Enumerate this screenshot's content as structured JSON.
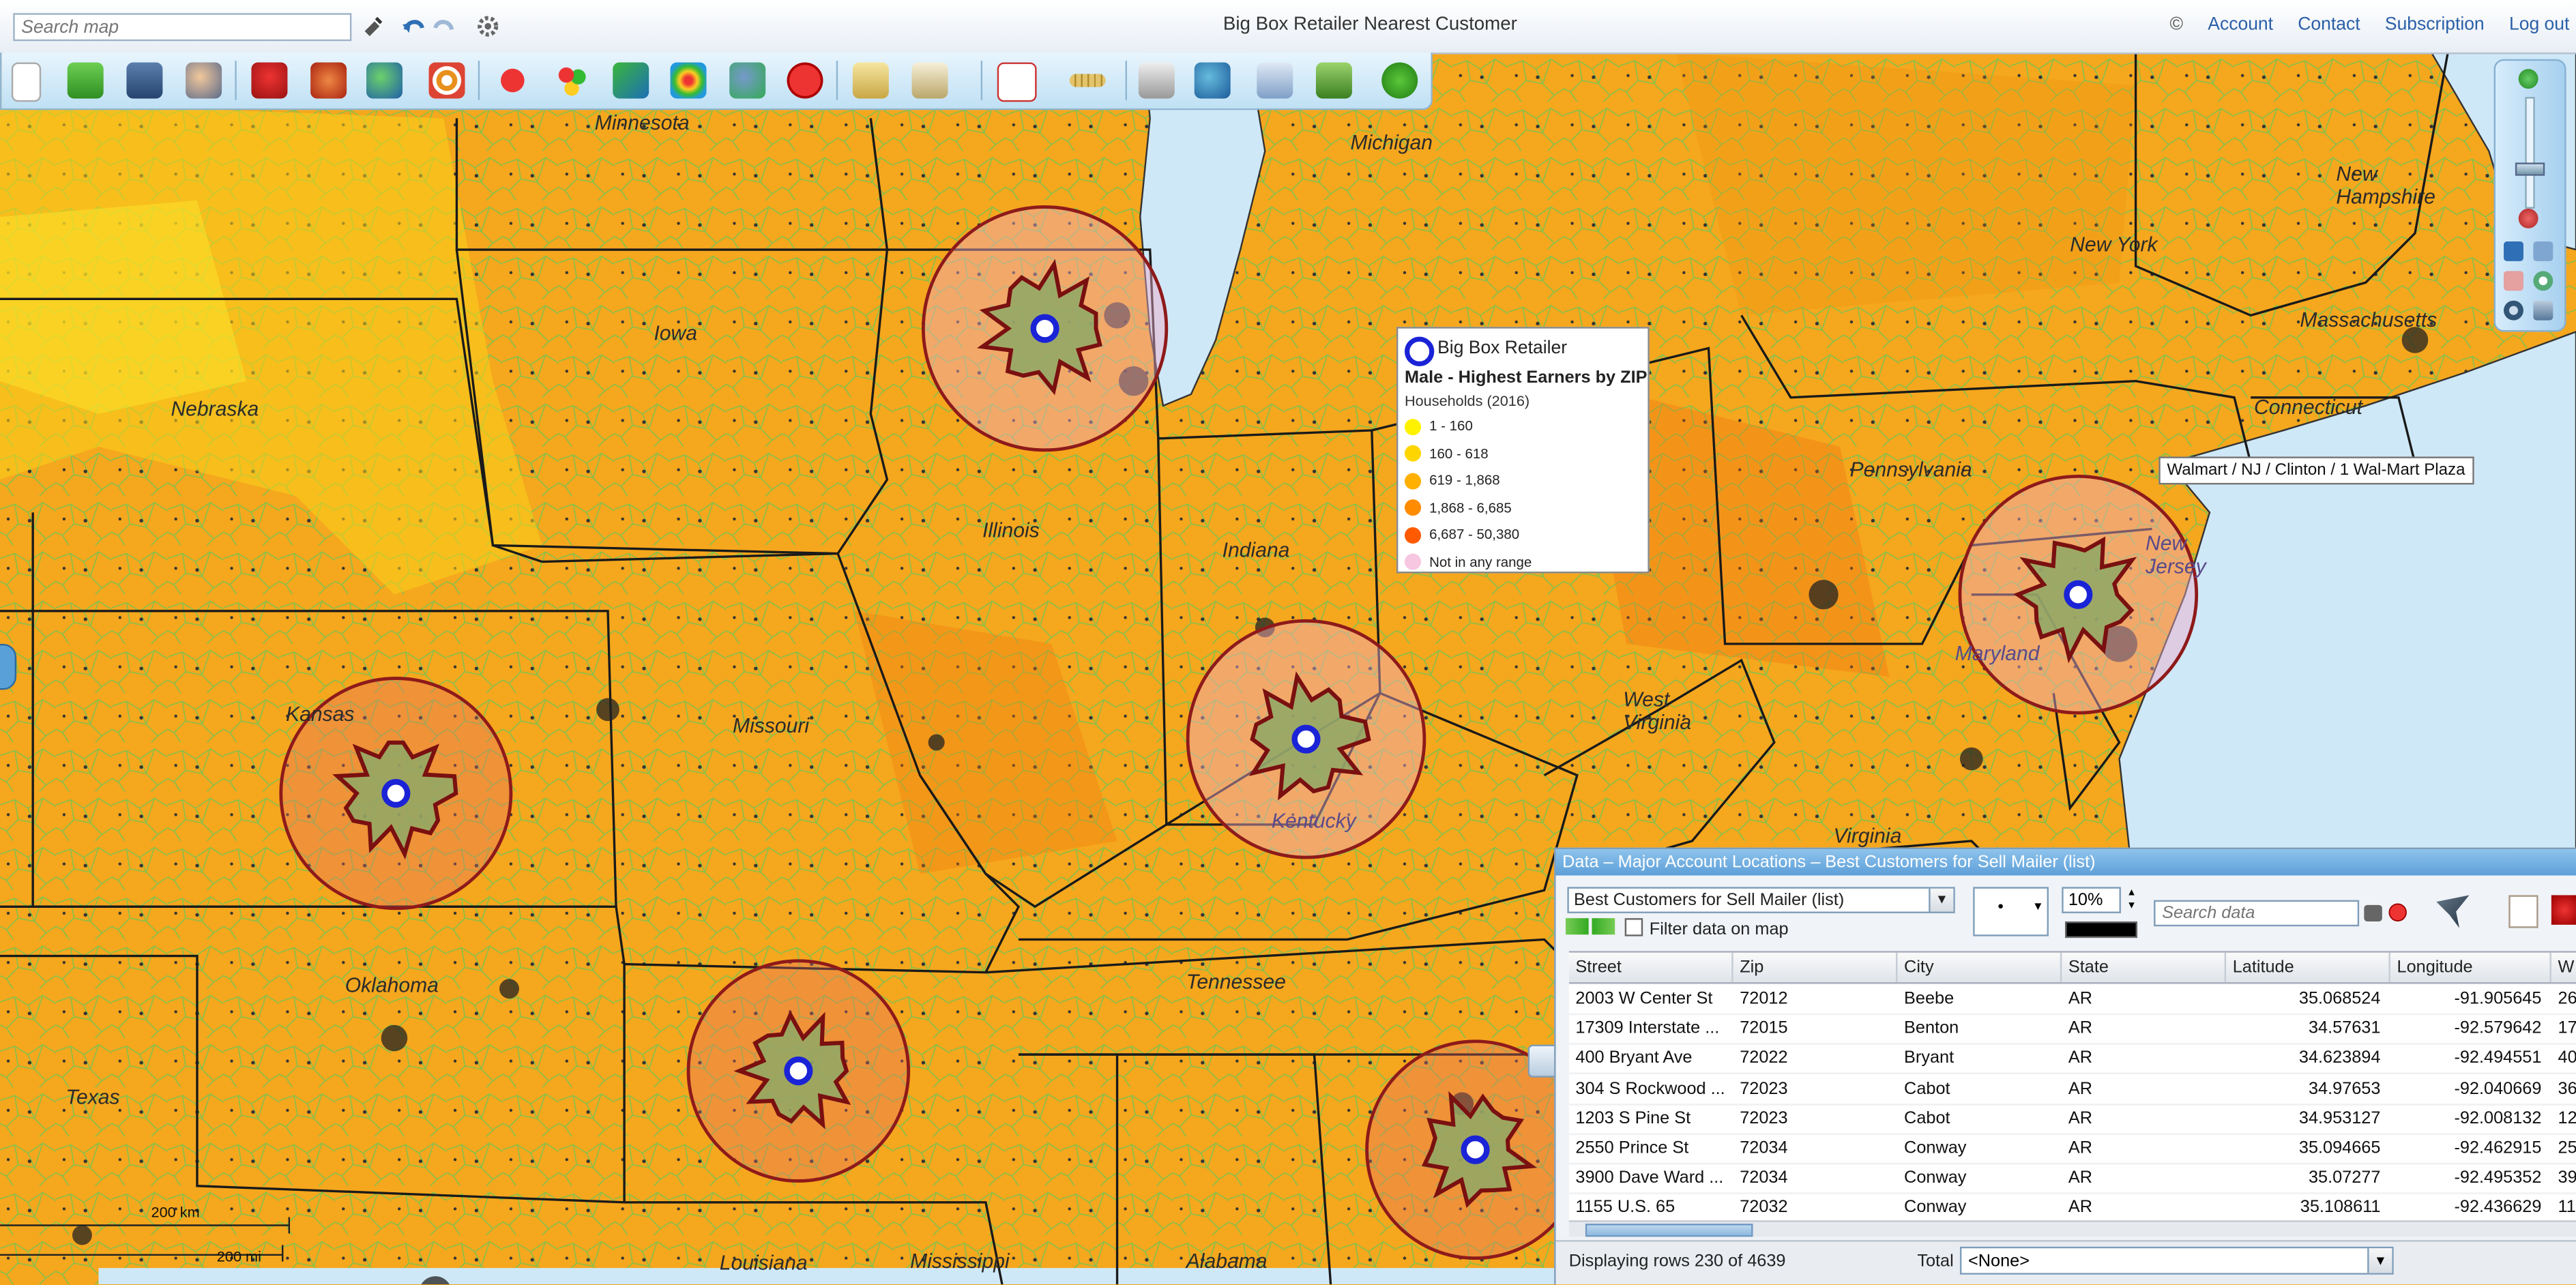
{
  "app": {
    "title": "Big Box Retailer Nearest Customer",
    "search_placeholder": "Search map",
    "copyright": "©",
    "links": [
      "Account",
      "Contact",
      "Subscription",
      "Log out"
    ]
  },
  "map": {
    "states": [
      {
        "name": "Minnesota"
      },
      {
        "name": "Michigan"
      },
      {
        "name": "Iowa"
      },
      {
        "name": "Nebraska"
      },
      {
        "name": "Illinois"
      },
      {
        "name": "Indiana"
      },
      {
        "name": "Kansas"
      },
      {
        "name": "Missouri"
      },
      {
        "name": "Kentucky"
      },
      {
        "name": "Oklahoma"
      },
      {
        "name": "Tennessee"
      },
      {
        "name": "Texas"
      },
      {
        "name": "Louisiana"
      },
      {
        "name": "Mississippi"
      },
      {
        "name": "Alabama"
      },
      {
        "name": "Pennsylvania"
      },
      {
        "name": "West Virginia"
      },
      {
        "name": "Virginia"
      },
      {
        "name": "Maryland"
      },
      {
        "name": "New York"
      },
      {
        "name": "New Hampshire"
      },
      {
        "name": "Massachusetts"
      },
      {
        "name": "Connecticut"
      },
      {
        "name": "New Jersey"
      }
    ],
    "scale_km": "200 km",
    "scale_mi": "200 mi",
    "tooltip": "Walmart /  NJ /  Clinton /  1 Wal-Mart Plaza"
  },
  "legend": {
    "symbol_title": "Big Box Retailer",
    "layer_title": "Male - Highest Earners by ZIP",
    "subtitle": "Households (2016)",
    "ranges": [
      {
        "label": "1 - 160",
        "color": "#fff200"
      },
      {
        "label": "160 - 618",
        "color": "#ffd500"
      },
      {
        "label": "619 - 1,868",
        "color": "#ffb000"
      },
      {
        "label": "1,868 - 6,685",
        "color": "#ff8c00"
      },
      {
        "label": "6,687 - 50,380",
        "color": "#ff5a00"
      },
      {
        "label": "Not in any range",
        "color": "#f7c6e0"
      }
    ]
  },
  "data_panel": {
    "title": "Data – Major Account Locations – Best Customers for Sell Mailer (list)",
    "dataset": "Best Customers for Sell Mailer (list)",
    "point_symbol": "•",
    "opacity": "10%",
    "search_placeholder": "Search data",
    "filter_label": "Filter data on map",
    "columns": [
      "Street",
      "Zip",
      "City",
      "State",
      "Latitude",
      "Longitude",
      "W"
    ],
    "rows": [
      [
        "2003 W Center St",
        "72012",
        "Beebe",
        "AR",
        "35.068524",
        "-91.905645",
        "26"
      ],
      [
        "17309 Interstate ...",
        "72015",
        "Benton",
        "AR",
        "34.57631",
        "-92.579642",
        "17"
      ],
      [
        "400 Bryant Ave",
        "72022",
        "Bryant",
        "AR",
        "34.623894",
        "-92.494551",
        "40"
      ],
      [
        "304 S Rockwood ...",
        "72023",
        "Cabot",
        "AR",
        "34.97653",
        "-92.040669",
        "36"
      ],
      [
        "1203 S Pine St",
        "72023",
        "Cabot",
        "AR",
        "34.953127",
        "-92.008132",
        "12"
      ],
      [
        "2550 Prince St",
        "72034",
        "Conway",
        "AR",
        "35.094665",
        "-92.462915",
        "25"
      ],
      [
        "3900 Dave Ward ...",
        "72034",
        "Conway",
        "AR",
        "35.07277",
        "-92.495352",
        "39"
      ],
      [
        "1155 U.S. 65",
        "72032",
        "Conway",
        "AR",
        "35.108611",
        "-92.436629",
        "11"
      ]
    ],
    "status": "Displaying rows 230 of 4639",
    "total_label": "Total",
    "total_value": "<None>"
  }
}
